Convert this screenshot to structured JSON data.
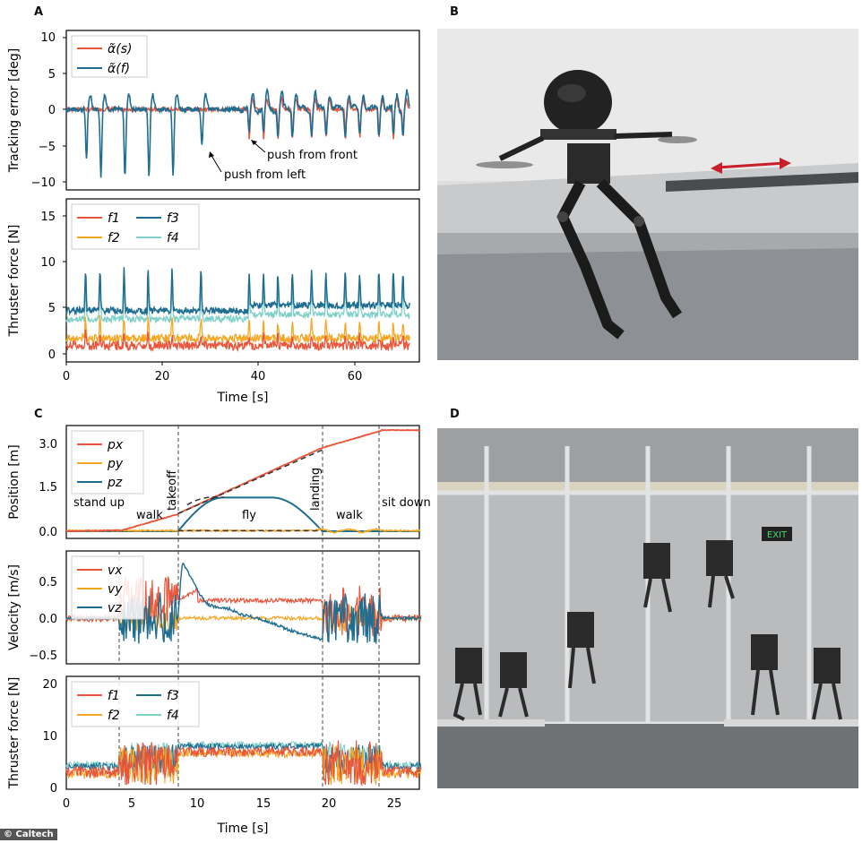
{
  "panel_letters": {
    "a": "A",
    "b": "B",
    "c": "C",
    "d": "D"
  },
  "credit": "© Caltech",
  "colors": {
    "f1": "#e8553b",
    "f2": "#f5a623",
    "f3": "#1f6d91",
    "f4": "#7fd0c8",
    "dashed": "#333333"
  },
  "panel_a": {
    "top": {
      "ylabel": "Tracking error [deg]",
      "legend": [
        "α̃(s)",
        "α̃(f)"
      ],
      "annotations": [
        "push from front",
        "push from left"
      ],
      "yticks": [
        "10",
        "5",
        "0",
        "−5",
        "−10"
      ]
    },
    "bottom": {
      "ylabel": "Thruster force [N]",
      "legend": [
        "f1",
        "f2",
        "f3",
        "f4"
      ],
      "yticks": [
        "15",
        "10",
        "5",
        "0"
      ],
      "xticks": [
        "0",
        "20",
        "40",
        "60"
      ],
      "xlabel": "Time [s]"
    }
  },
  "panel_c": {
    "position": {
      "ylabel": "Position [m]",
      "legend": [
        "px",
        "py",
        "pz"
      ],
      "yticks": [
        "3.0",
        "1.5",
        "0.0"
      ],
      "phases": [
        "stand up",
        "walk",
        "takeoff",
        "fly",
        "landing",
        "walk",
        "sit down"
      ]
    },
    "velocity": {
      "ylabel": "Velocity [m/s]",
      "legend": [
        "vx",
        "vy",
        "vz"
      ],
      "yticks": [
        "0.5",
        "0.0",
        "−0.5"
      ]
    },
    "force": {
      "ylabel": "Thruster force [N]",
      "legend": [
        "f1",
        "f2",
        "f3",
        "f4"
      ],
      "yticks": [
        "20",
        "10",
        "0"
      ],
      "xticks": [
        "0",
        "5",
        "10",
        "15",
        "20",
        "25"
      ],
      "xlabel": "Time [s]"
    }
  },
  "photo_d": {
    "exit_sign": "EXIT"
  }
}
